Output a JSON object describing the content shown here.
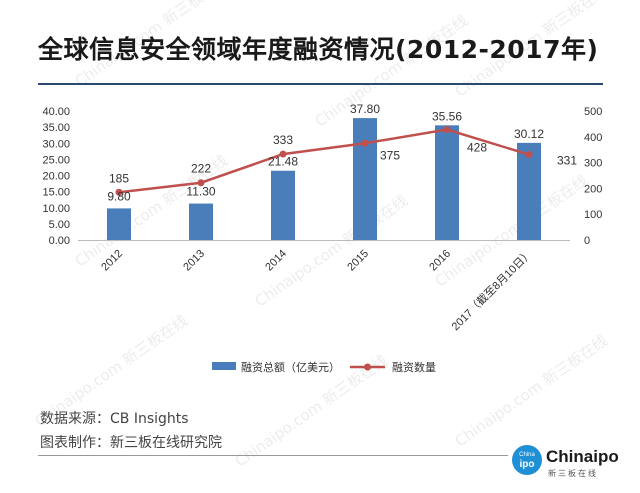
{
  "title": "全球信息安全领域年度融资情况(2012-2017年)",
  "footer": {
    "source": "数据来源：CB Insights",
    "maker": "图表制作：新三板在线研究院"
  },
  "logo": {
    "brand": "Chinaipo",
    "sub": "新三板在线",
    "badge_top": "China",
    "badge_bottom": "ipo"
  },
  "watermark": "Chinaipo.com   新三板在线",
  "chart_data": {
    "type": "bar+line",
    "categories": [
      "2012",
      "2013",
      "2014",
      "2015",
      "2016",
      "2017（截至8月10日）"
    ],
    "series": [
      {
        "name": "融资总额（亿美元）",
        "type": "bar",
        "axis": "left",
        "color": "#4a7ebb",
        "values": [
          9.8,
          11.3,
          21.48,
          37.8,
          35.56,
          30.12
        ],
        "labels": [
          "9.80",
          "11.30",
          "21.48",
          "37.80",
          "35.56",
          "30.12"
        ]
      },
      {
        "name": "融资数量",
        "type": "line",
        "axis": "right",
        "color": "#c0504d",
        "values": [
          185,
          222,
          333,
          375,
          428,
          331
        ],
        "labels": [
          "185",
          "222",
          "333",
          "375",
          "428",
          "331"
        ]
      }
    ],
    "left_axis": {
      "min": 0,
      "max": 40,
      "step": 5,
      "ticks": [
        "0.00",
        "5.00",
        "10.00",
        "15.00",
        "20.00",
        "25.00",
        "30.00",
        "35.00",
        "40.00"
      ]
    },
    "right_axis": {
      "min": 0,
      "max": 500,
      "step": 100,
      "ticks": [
        "0",
        "100",
        "200",
        "300",
        "400",
        "500"
      ]
    },
    "legend_position": "bottom"
  }
}
